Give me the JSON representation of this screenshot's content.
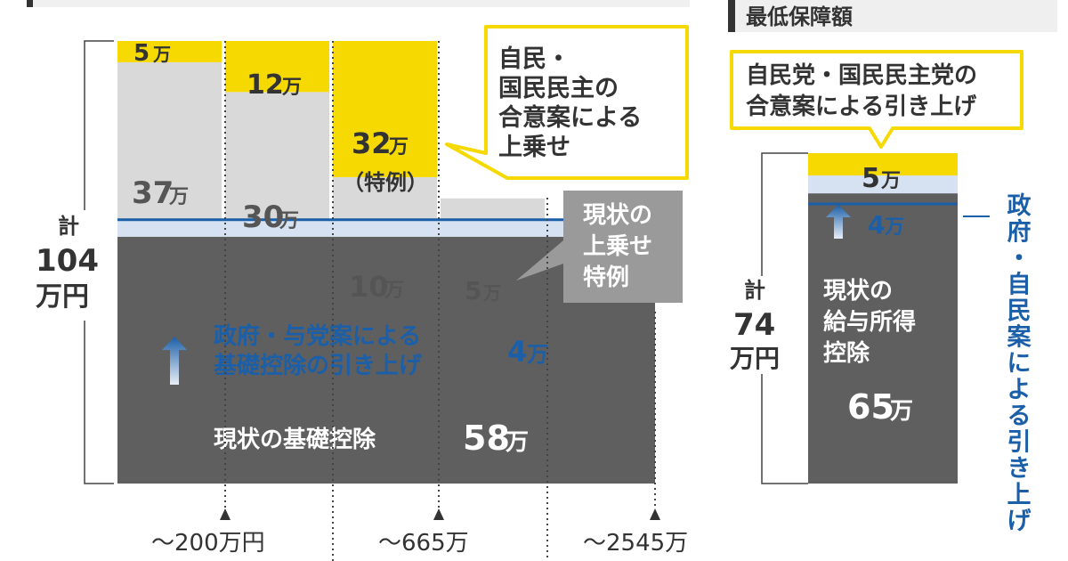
{
  "left_chart": {
    "total_label": {
      "line1": "計",
      "line2": "104",
      "line3": "万円"
    },
    "base": {
      "label": "現状の基礎控除",
      "value": "58",
      "unit": "万"
    },
    "increase": {
      "label_line1": "政府・与党案による",
      "label_line2": "基礎控除の引き上げ",
      "value": "4",
      "unit": "万"
    },
    "columns": [
      {
        "gray": "37",
        "yellow": "5",
        "unit": "万"
      },
      {
        "gray": "30",
        "yellow": "12",
        "unit": "万"
      },
      {
        "gray": "10",
        "yellow": "32",
        "unit": "万",
        "note": "（特例）"
      },
      {
        "gray": "5",
        "unit": "万"
      }
    ],
    "callout_yellow": {
      "lines": [
        "自民・",
        "国民民主の",
        "合意案による",
        "上乗せ"
      ]
    },
    "callout_gray": {
      "lines": [
        "現状の",
        "上乗せ",
        "特例"
      ]
    },
    "x_labels": [
      "～200万円",
      "～665万",
      "～2545万"
    ]
  },
  "right_chart": {
    "header": "最低保障額",
    "callout": {
      "line1": "自民党・国民民主党の",
      "line2": "合意案による引き上げ"
    },
    "total_label": {
      "line1": "計",
      "line2": "74",
      "line3": "万円"
    },
    "base": {
      "line1": "現状の",
      "line2": "給与所得",
      "line3": "控除",
      "value": "65",
      "unit": "万"
    },
    "increase": {
      "value": "4",
      "unit": "万"
    },
    "top": {
      "value": "5",
      "unit": "万"
    },
    "side_label": "政府・自民案による引き上げ"
  },
  "chart_data": [
    {
      "type": "bar",
      "stacked": true,
      "categories": [
        "～200万円",
        "",
        "～665万",
        "",
        "～2545万"
      ],
      "series": [
        {
          "name": "現状の基礎控除",
          "values": [
            58,
            58,
            58,
            58,
            58
          ]
        },
        {
          "name": "政府・与党案による基礎控除の引き上げ",
          "values": [
            4,
            4,
            4,
            4,
            4
          ]
        },
        {
          "name": "現状の上乗せ特例",
          "values": [
            37,
            30,
            10,
            5,
            0
          ]
        },
        {
          "name": "自民・国民民主の合意案による上乗せ",
          "values": [
            5,
            12,
            32,
            0,
            0
          ]
        }
      ],
      "ylabel": "",
      "ylim": [
        0,
        104
      ]
    },
    {
      "type": "bar",
      "stacked": true,
      "title": "最低保障額",
      "categories": [
        ""
      ],
      "series": [
        {
          "name": "現状の給与所得控除",
          "values": [
            65
          ]
        },
        {
          "name": "政府・自民案による引き上げ",
          "values": [
            4
          ]
        },
        {
          "name": "自民党・国民民主党の合意案による引き上げ",
          "values": [
            5
          ]
        }
      ],
      "ylim": [
        0,
        74
      ]
    }
  ],
  "colors": {
    "yellow": "#f5d900",
    "gray_light": "#d9d9d9",
    "gray_dark": "#5f5f5f",
    "blue_light": "#d6e2f2",
    "blue": "#1b5fa8",
    "callout_gray": "#9a9a9a",
    "text_dark": "#404040"
  }
}
